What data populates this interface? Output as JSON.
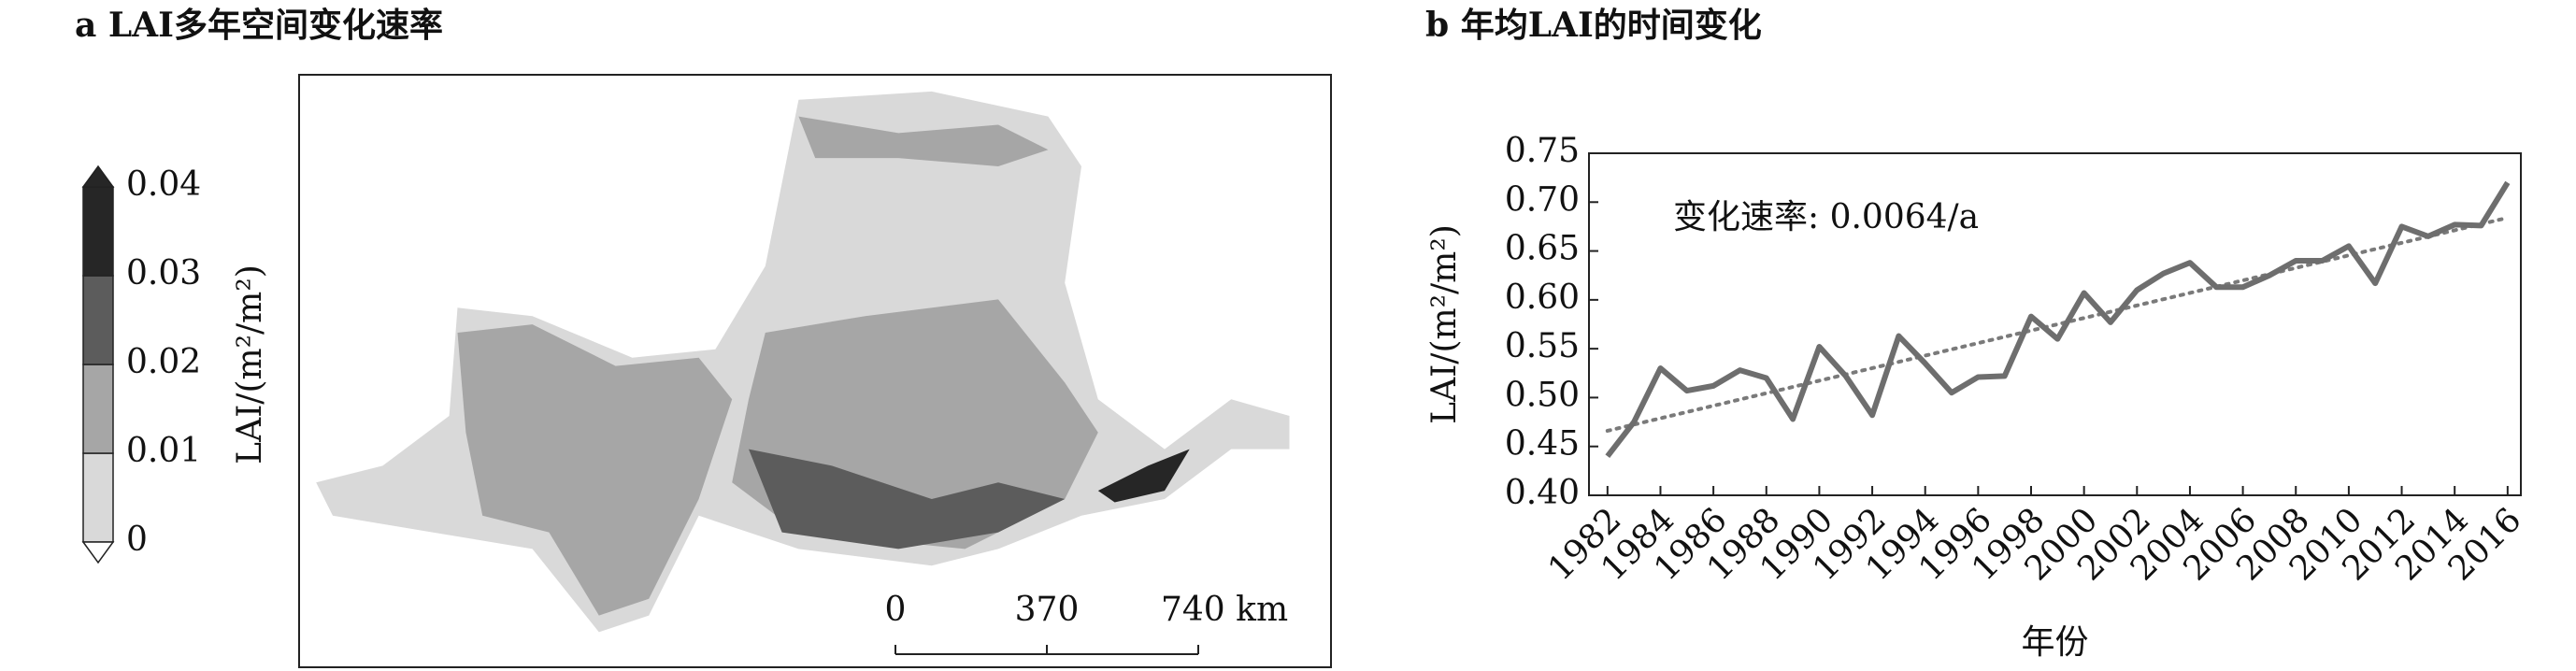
{
  "chart_data": [
    {
      "type": "map",
      "title": "a LAI多年空间变化速率",
      "colorbar": {
        "label": "LAI/(m²/m²)",
        "ticks": [
          0,
          0.01,
          0.02,
          0.03,
          0.04
        ],
        "colors": [
          "#d9d9d9",
          "#a6a6a6",
          "#5c5c5c",
          "#262626"
        ]
      },
      "scalebar": {
        "ticks": [
          0,
          370,
          {
            "value": 740,
            "label": "740 km"
          }
        ]
      }
    },
    {
      "type": "line",
      "title": "b 年均LAI的时间变化",
      "xlabel": "年份",
      "ylabel": "LAI/(m²/m²)",
      "annotation": "变化速率: 0.0064/a",
      "x": [
        1982,
        1983,
        1984,
        1985,
        1986,
        1987,
        1988,
        1989,
        1990,
        1991,
        1992,
        1993,
        1994,
        1995,
        1996,
        1997,
        1998,
        1999,
        2000,
        2001,
        2002,
        2003,
        2004,
        2005,
        2006,
        2007,
        2008,
        2009,
        2010,
        2011,
        2012,
        2013,
        2014,
        2015,
        2016
      ],
      "series": [
        {
          "color": "#6e6e6e",
          "values": [
            0.44,
            0.475,
            0.53,
            0.507,
            0.512,
            0.528,
            0.52,
            0.478,
            0.552,
            0.522,
            0.482,
            0.563,
            0.535,
            0.505,
            0.521,
            0.522,
            0.583,
            0.56,
            0.607,
            0.577,
            0.61,
            0.627,
            0.638,
            0.613,
            0.613,
            0.625,
            0.64,
            0.64,
            0.655,
            0.617,
            0.675,
            0.665,
            0.677,
            0.676,
            0.72
          ]
        }
      ],
      "trend": {
        "x": [
          1982,
          2016
        ],
        "values": [
          0.466,
          0.684
        ],
        "color": "#7a7a7a"
      },
      "xlim": [
        1981.3,
        2016.5
      ],
      "ylim": [
        0.4,
        0.75
      ],
      "xticks": [
        1982,
        1984,
        1986,
        1988,
        1990,
        1992,
        1994,
        1996,
        1998,
        2000,
        2002,
        2004,
        2006,
        2008,
        2010,
        2012,
        2014,
        2016
      ],
      "yticks": [
        {
          "value": 0.4,
          "label": "0.40"
        },
        0.45,
        {
          "value": 0.5,
          "label": "0.50"
        },
        0.55,
        {
          "value": 0.6,
          "label": "0.60"
        },
        0.65,
        {
          "value": 0.7,
          "label": "0.70"
        },
        0.75
      ]
    }
  ]
}
